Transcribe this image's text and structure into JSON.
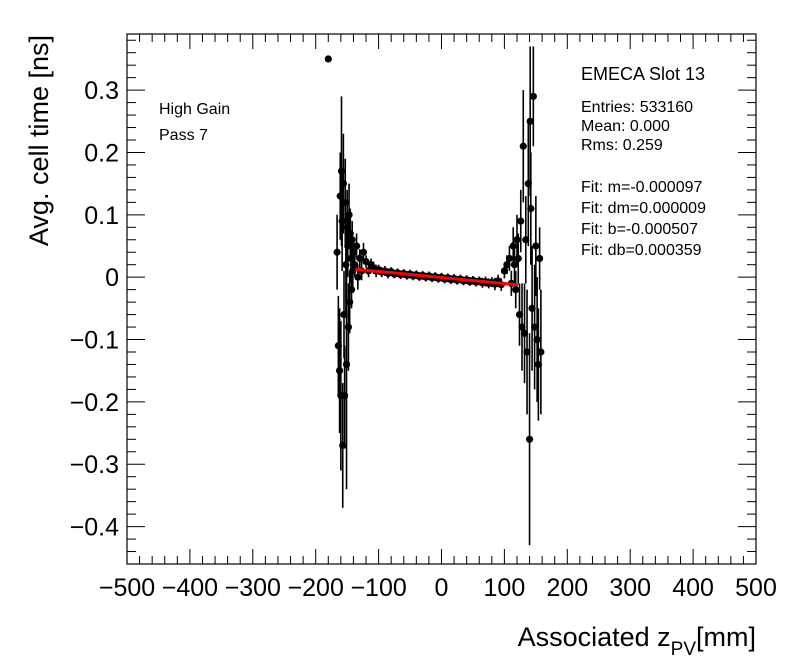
{
  "chart_data": {
    "type": "scatter",
    "xlabel_main": "Associated z",
    "xlabel_sub": "PV",
    "xlabel_unit": "[mm]",
    "ylabel": "Avg. cell time [ns]",
    "xlim": [
      -500,
      500
    ],
    "ylim": [
      -0.46,
      0.39
    ],
    "x_ticks": [
      -500,
      -400,
      -300,
      -200,
      -100,
      0,
      100,
      200,
      300,
      400,
      500
    ],
    "x_tick_labels": [
      "−500",
      "−400",
      "−300",
      "−200",
      "−100",
      "0",
      "100",
      "200",
      "300",
      "400",
      "500"
    ],
    "y_ticks": [
      -0.4,
      -0.3,
      -0.2,
      -0.1,
      0,
      0.1,
      0.2,
      0.3
    ],
    "y_tick_labels": [
      "−0.4",
      "−0.3",
      "−0.2",
      "−0.1",
      "0",
      "0.1",
      "0.2",
      "0.3"
    ],
    "annotations": [
      "High Gain",
      "Pass 7"
    ],
    "stats": {
      "title": "EMECA Slot 13",
      "lines_top": [
        "Entries: 533160",
        "Mean: 0.000",
        "Rms: 0.259"
      ],
      "lines_fit": [
        "Fit: m=-0.000097",
        "Fit: dm=0.000009",
        "Fit: b=-0.000507",
        "Fit: db=0.000359"
      ]
    },
    "fit_line": {
      "color": "#ff0000",
      "x": [
        -137,
        122
      ],
      "y": [
        0.0128,
        -0.0124
      ]
    },
    "marker_color": "#000000",
    "points": [
      {
        "x": -180,
        "y": 0.35,
        "err": 0
      },
      {
        "x": -166,
        "y": 0.04,
        "err": 0.06
      },
      {
        "x": -164,
        "y": -0.11,
        "err": 0.08
      },
      {
        "x": -162,
        "y": -0.15,
        "err": 0.1
      },
      {
        "x": -161,
        "y": 0.13,
        "err": 0.07
      },
      {
        "x": -160,
        "y": -0.19,
        "err": 0.12
      },
      {
        "x": -159,
        "y": 0.17,
        "err": 0.12
      },
      {
        "x": -158,
        "y": 0.09,
        "err": 0.08
      },
      {
        "x": -157,
        "y": -0.27,
        "err": 0.1
      },
      {
        "x": -156,
        "y": 0.15,
        "err": 0.08
      },
      {
        "x": -155,
        "y": -0.06,
        "err": 0.07
      },
      {
        "x": -154,
        "y": -0.19,
        "err": 0.08
      },
      {
        "x": -153,
        "y": 0.12,
        "err": 0.07
      },
      {
        "x": -152,
        "y": 0.02,
        "err": 0.08
      },
      {
        "x": -151,
        "y": -0.14,
        "err": 0.2
      },
      {
        "x": -150,
        "y": 0.08,
        "err": 0.06
      },
      {
        "x": -149,
        "y": 0.05,
        "err": 0.05
      },
      {
        "x": -148,
        "y": -0.08,
        "err": 0.07
      },
      {
        "x": -147,
        "y": 0.1,
        "err": 0.05
      },
      {
        "x": -146,
        "y": -0.04,
        "err": 0.05
      },
      {
        "x": -145,
        "y": 0.07,
        "err": 0.04
      },
      {
        "x": -144,
        "y": 0.03,
        "err": 0.04
      },
      {
        "x": -143,
        "y": -0.02,
        "err": 0.03
      },
      {
        "x": -142,
        "y": 0.06,
        "err": 0.03
      },
      {
        "x": -141,
        "y": 0.01,
        "err": 0.03
      },
      {
        "x": -140,
        "y": 0.04,
        "err": 0.02
      },
      {
        "x": -138,
        "y": 0.02,
        "err": 0.02
      },
      {
        "x": -135,
        "y": 0.05,
        "err": 0.02
      },
      {
        "x": -133,
        "y": 0.0,
        "err": 0.02
      },
      {
        "x": -130,
        "y": 0.03,
        "err": 0.015
      },
      {
        "x": -127,
        "y": 0.01,
        "err": 0.015
      },
      {
        "x": -124,
        "y": 0.04,
        "err": 0.015
      },
      {
        "x": -120,
        "y": 0.025,
        "err": 0.01
      },
      {
        "x": -116,
        "y": 0.01,
        "err": 0.01
      },
      {
        "x": -112,
        "y": 0.02,
        "err": 0.01
      },
      {
        "x": -108,
        "y": 0.015,
        "err": 0.01
      },
      {
        "x": -104,
        "y": 0.01,
        "err": 0.01
      },
      {
        "x": -100,
        "y": 0.012,
        "err": 0.008
      },
      {
        "x": -95,
        "y": 0.008,
        "err": 0.008
      },
      {
        "x": -90,
        "y": 0.01,
        "err": 0.008
      },
      {
        "x": -85,
        "y": 0.006,
        "err": 0.008
      },
      {
        "x": -80,
        "y": 0.009,
        "err": 0.007
      },
      {
        "x": -75,
        "y": 0.005,
        "err": 0.007
      },
      {
        "x": -70,
        "y": 0.007,
        "err": 0.007
      },
      {
        "x": -65,
        "y": 0.004,
        "err": 0.007
      },
      {
        "x": -60,
        "y": 0.006,
        "err": 0.007
      },
      {
        "x": -55,
        "y": 0.003,
        "err": 0.007
      },
      {
        "x": -50,
        "y": 0.005,
        "err": 0.007
      },
      {
        "x": -45,
        "y": 0.002,
        "err": 0.007
      },
      {
        "x": -40,
        "y": 0.004,
        "err": 0.007
      },
      {
        "x": -35,
        "y": 0.001,
        "err": 0.007
      },
      {
        "x": -30,
        "y": 0.003,
        "err": 0.007
      },
      {
        "x": -25,
        "y": 0.0,
        "err": 0.007
      },
      {
        "x": -20,
        "y": 0.002,
        "err": 0.007
      },
      {
        "x": -15,
        "y": -0.001,
        "err": 0.007
      },
      {
        "x": -10,
        "y": 0.001,
        "err": 0.007
      },
      {
        "x": -5,
        "y": -0.002,
        "err": 0.007
      },
      {
        "x": 0,
        "y": 0.0,
        "err": 0.007
      },
      {
        "x": 5,
        "y": -0.003,
        "err": 0.007
      },
      {
        "x": 10,
        "y": -0.001,
        "err": 0.007
      },
      {
        "x": 15,
        "y": -0.004,
        "err": 0.007
      },
      {
        "x": 20,
        "y": -0.002,
        "err": 0.007
      },
      {
        "x": 25,
        "y": -0.005,
        "err": 0.007
      },
      {
        "x": 30,
        "y": -0.003,
        "err": 0.007
      },
      {
        "x": 35,
        "y": -0.006,
        "err": 0.007
      },
      {
        "x": 40,
        "y": -0.004,
        "err": 0.007
      },
      {
        "x": 45,
        "y": -0.007,
        "err": 0.007
      },
      {
        "x": 50,
        "y": -0.005,
        "err": 0.007
      },
      {
        "x": 55,
        "y": -0.008,
        "err": 0.007
      },
      {
        "x": 60,
        "y": -0.006,
        "err": 0.007
      },
      {
        "x": 65,
        "y": -0.009,
        "err": 0.008
      },
      {
        "x": 70,
        "y": -0.007,
        "err": 0.008
      },
      {
        "x": 75,
        "y": -0.01,
        "err": 0.008
      },
      {
        "x": 80,
        "y": -0.008,
        "err": 0.008
      },
      {
        "x": 85,
        "y": -0.011,
        "err": 0.01
      },
      {
        "x": 90,
        "y": -0.006,
        "err": 0.01
      },
      {
        "x": 95,
        "y": -0.012,
        "err": 0.01
      },
      {
        "x": 100,
        "y": 0.01,
        "err": 0.012
      },
      {
        "x": 104,
        "y": 0.02,
        "err": 0.015
      },
      {
        "x": 108,
        "y": 0.03,
        "err": 0.02
      },
      {
        "x": 111,
        "y": -0.01,
        "err": 0.02
      },
      {
        "x": 114,
        "y": 0.05,
        "err": 0.03
      },
      {
        "x": 116,
        "y": 0.02,
        "err": 0.03
      },
      {
        "x": 118,
        "y": -0.02,
        "err": 0.03
      },
      {
        "x": 120,
        "y": 0.06,
        "err": 0.04
      },
      {
        "x": 122,
        "y": 0.03,
        "err": 0.04
      },
      {
        "x": 124,
        "y": -0.06,
        "err": 0.05
      },
      {
        "x": 126,
        "y": 0.09,
        "err": 0.05
      },
      {
        "x": 128,
        "y": -0.08,
        "err": 0.07
      },
      {
        "x": 130,
        "y": 0.21,
        "err": 0.09
      },
      {
        "x": 132,
        "y": -0.09,
        "err": 0.08
      },
      {
        "x": 134,
        "y": 0.06,
        "err": 0.07
      },
      {
        "x": 136,
        "y": -0.12,
        "err": 0.1
      },
      {
        "x": 138,
        "y": 0.15,
        "err": 0.1
      },
      {
        "x": 140,
        "y": -0.26,
        "err": 0.17
      },
      {
        "x": 141,
        "y": 0.25,
        "err": 0.12
      },
      {
        "x": 142,
        "y": 0.11,
        "err": 0.09
      },
      {
        "x": 144,
        "y": -0.05,
        "err": 0.1
      },
      {
        "x": 146,
        "y": 0.29,
        "err": 0.08
      },
      {
        "x": 148,
        "y": -0.08,
        "err": 0.1
      },
      {
        "x": 150,
        "y": 0.05,
        "err": 0.08
      },
      {
        "x": 152,
        "y": -0.1,
        "err": 0.1
      },
      {
        "x": 154,
        "y": -0.14,
        "err": 0.09
      },
      {
        "x": 156,
        "y": 0.03,
        "err": 0.05
      },
      {
        "x": 158,
        "y": -0.12,
        "err": 0.1
      }
    ]
  }
}
